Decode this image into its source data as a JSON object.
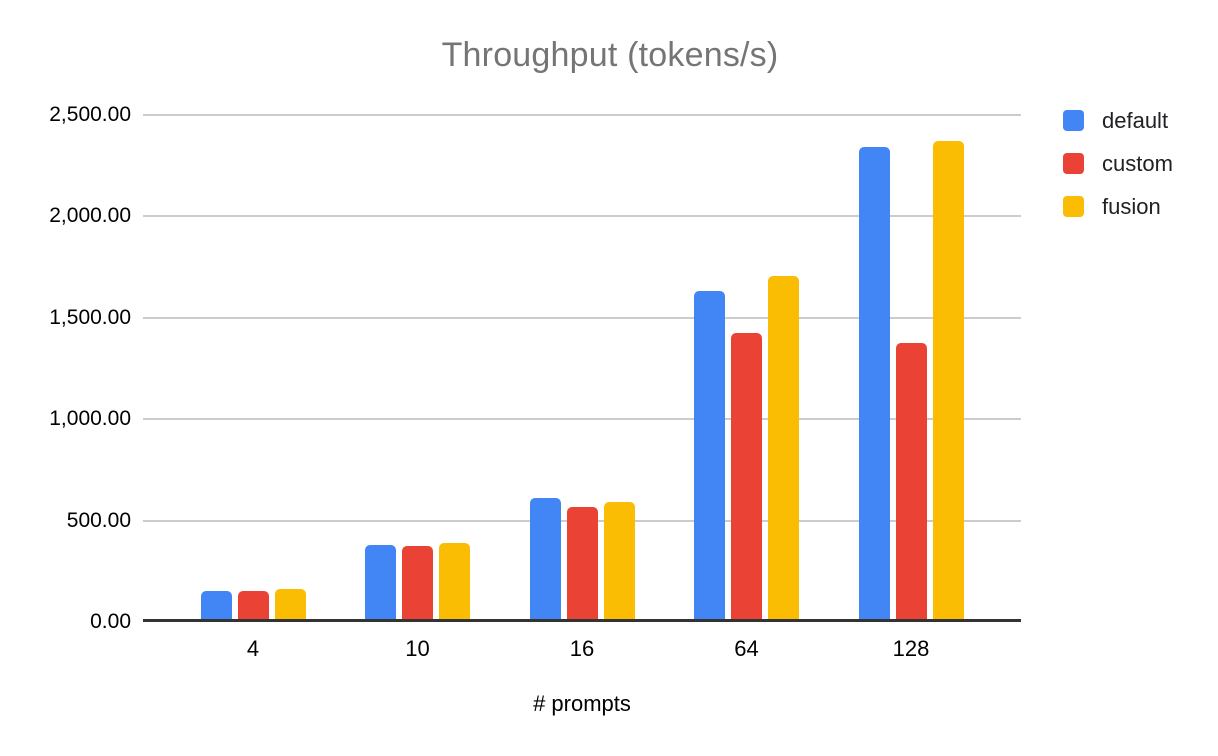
{
  "chart_data": {
    "type": "bar",
    "title": "Throughput (tokens/s)",
    "xlabel": "# prompts",
    "ylabel": "",
    "categories": [
      "4",
      "10",
      "16",
      "64",
      "128"
    ],
    "series": [
      {
        "name": "default",
        "color": "#4285F4",
        "values": [
          155,
          378,
          610,
          1630,
          2340
        ]
      },
      {
        "name": "custom",
        "color": "#EA4335",
        "values": [
          155,
          376,
          567,
          1424,
          1378
        ]
      },
      {
        "name": "fusion",
        "color": "#FBBC04",
        "values": [
          165,
          388,
          592,
          1704,
          2372
        ]
      }
    ],
    "ylim": [
      0,
      2500
    ],
    "ytick_labels": [
      "0.00",
      "500.00",
      "1,000.00",
      "1,500.00",
      "2,000.00",
      "2,500.00"
    ],
    "grid": true,
    "legend_position": "right",
    "colors": {
      "title_text": "#757575",
      "axis_text": "#000000",
      "legend_text": "#202124",
      "gridline": "#cccccc",
      "axis_line": "#333333",
      "background": "#ffffff"
    }
  }
}
